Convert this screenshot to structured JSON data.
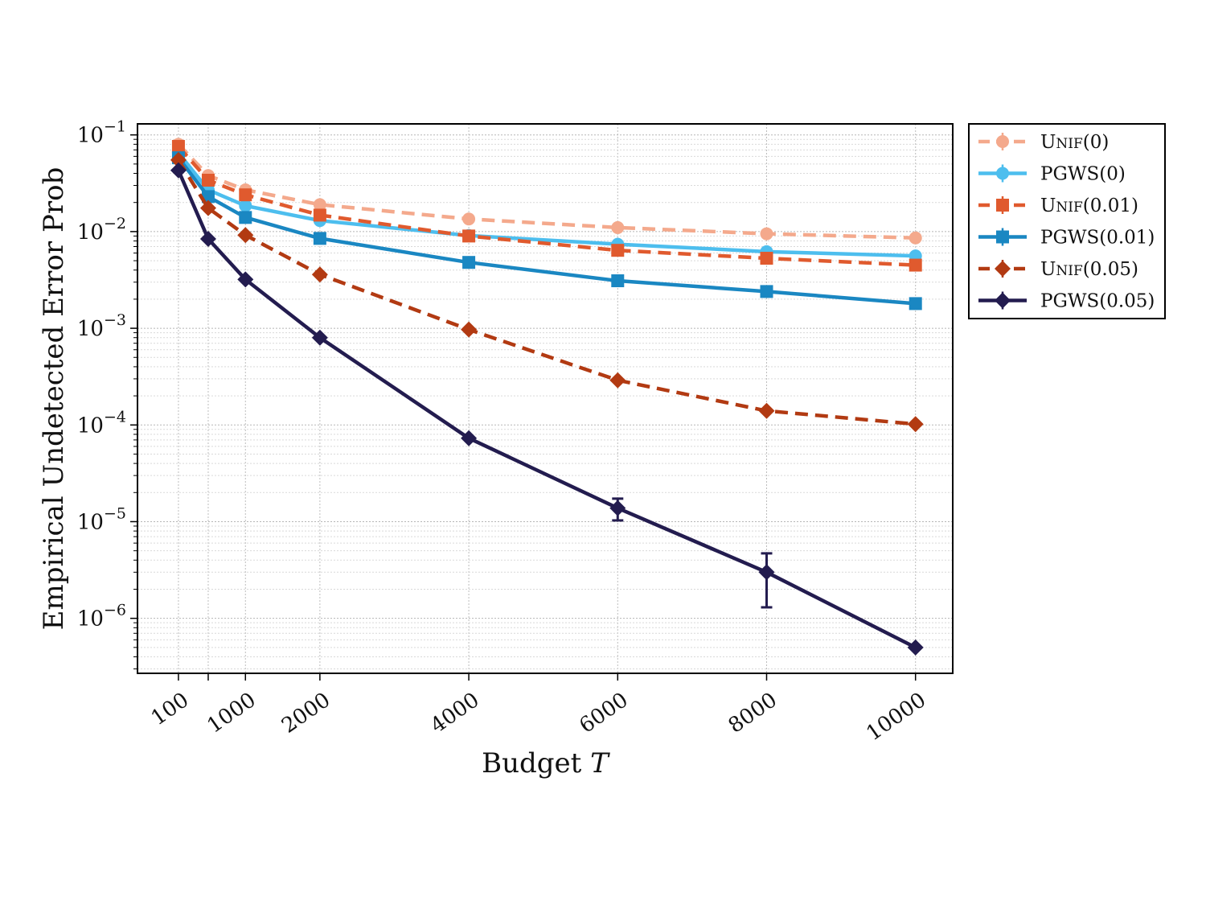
{
  "chart_data": {
    "type": "line",
    "title": "",
    "xlabel": "Budget ",
    "xlabel_var": "T",
    "ylabel": "Empirical Undetected Error Prob",
    "y_scale": "log",
    "ylim": [
      2.7e-07,
      0.13
    ],
    "xlim": [
      -450,
      10500
    ],
    "grid": true,
    "legend_position": "outside-right-top",
    "x": [
      100,
      500,
      1000,
      2000,
      4000,
      6000,
      8000,
      10000
    ],
    "x_ticks": [
      100,
      500,
      1000,
      2000,
      4000,
      6000,
      8000,
      10000
    ],
    "x_tick_labels": [
      "100",
      "",
      "1000",
      "2000",
      "4000",
      "6000",
      "8000",
      "10000"
    ],
    "y_ticks": [
      1e-06,
      1e-05,
      0.0001,
      0.001,
      0.01,
      0.1
    ],
    "y_tick_labels": [
      {
        "base": "10",
        "exp": "−6"
      },
      {
        "base": "10",
        "exp": "−5"
      },
      {
        "base": "10",
        "exp": "−4"
      },
      {
        "base": "10",
        "exp": "−3"
      },
      {
        "base": "10",
        "exp": "−2"
      },
      {
        "base": "10",
        "exp": "−1"
      }
    ],
    "series": [
      {
        "name": "UNIF(0)",
        "color": "#F4A98C",
        "dash": true,
        "marker": "circle",
        "values": [
          0.08,
          0.038,
          0.027,
          0.019,
          0.0135,
          0.011,
          0.0095,
          0.0086
        ],
        "err": [
          0,
          0,
          0,
          0,
          0,
          0,
          0,
          0
        ]
      },
      {
        "name": "PGWS(0)",
        "color": "#4DBEEE",
        "dash": false,
        "marker": "circle",
        "values": [
          0.065,
          0.027,
          0.0185,
          0.013,
          0.0091,
          0.0074,
          0.0062,
          0.0056
        ],
        "err": [
          0,
          0,
          0,
          0,
          0,
          0,
          0,
          0
        ]
      },
      {
        "name": "UNIF(0.01)",
        "color": "#E05A2E",
        "dash": true,
        "marker": "square",
        "values": [
          0.076,
          0.034,
          0.024,
          0.0148,
          0.009,
          0.0064,
          0.0053,
          0.0045
        ],
        "err": [
          0,
          0,
          0,
          0,
          0,
          0,
          0,
          0
        ]
      },
      {
        "name": "PGWS(0.01)",
        "color": "#1A87C2",
        "dash": false,
        "marker": "square",
        "values": [
          0.058,
          0.023,
          0.014,
          0.0085,
          0.0048,
          0.0031,
          0.0024,
          0.0018
        ],
        "err": [
          0,
          0,
          0,
          0,
          0,
          0,
          0,
          0
        ]
      },
      {
        "name": "UNIF(0.05)",
        "color": "#B23A12",
        "dash": true,
        "marker": "diamond",
        "values": [
          0.055,
          0.0175,
          0.0092,
          0.0036,
          0.00097,
          0.00029,
          0.00014,
          0.000102
        ],
        "err": [
          0,
          0,
          0,
          0,
          0,
          0,
          0,
          0
        ]
      },
      {
        "name": "PGWS(0.05)",
        "color": "#231C4F",
        "dash": false,
        "marker": "diamond",
        "values": [
          0.043,
          0.0084,
          0.0032,
          0.0008,
          7.3e-05,
          1.38e-05,
          3e-06,
          5e-07
        ],
        "err": [
          0,
          0,
          0,
          0,
          0,
          3.5e-06,
          1.7e-06,
          0
        ]
      }
    ]
  }
}
